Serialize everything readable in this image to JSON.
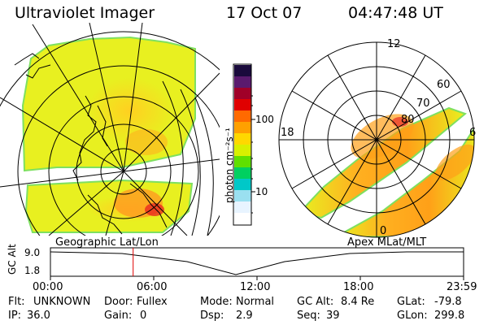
{
  "header": {
    "instrument": "Ultraviolet Imager",
    "date": "17 Oct 07",
    "time": "04:47:48 UT"
  },
  "colorbar": {
    "label": "photon cm⁻²s⁻¹",
    "ticks": [
      "100",
      "10"
    ],
    "scale": "log",
    "colors": [
      "#1a0a3c",
      "#5a1a6e",
      "#a00028",
      "#e00000",
      "#ff6a00",
      "#ffa000",
      "#ffd800",
      "#d8f000",
      "#60e000",
      "#00d060",
      "#00c8c8",
      "#9ae0f0",
      "#e8f4ff",
      "#ffffff"
    ]
  },
  "left_map": {
    "caption": "Geographic Lat/Lon",
    "fill_color": "#e8f020",
    "edge_color": "#7ee060"
  },
  "right_map": {
    "caption": "Apex MLat/MLT",
    "mlt_labels": [
      "12",
      "18",
      "6",
      "0"
    ],
    "lat_labels": [
      "60",
      "70",
      "80"
    ],
    "fill_color": "#e8f020"
  },
  "timeline": {
    "ylabel": "GC Alt",
    "yticks": [
      "9.0",
      "1.8"
    ],
    "xticks": [
      "00:00",
      "06:00",
      "12:00",
      "18:00",
      "23:59"
    ],
    "marker_hours": 4.8,
    "marker_color": "#e00000"
  },
  "status": {
    "row1": [
      {
        "label": "Flt:",
        "value": "UNKNOWN"
      },
      {
        "label": "Door:",
        "value": "Fullex"
      },
      {
        "label": "Mode:",
        "value": "Normal"
      },
      {
        "label": "GC Alt:",
        "value": "8.4 Re"
      },
      {
        "label": "GLat:",
        "value": "-79.8"
      }
    ],
    "row2": [
      {
        "label": "IP:",
        "value": "36.0"
      },
      {
        "label": "Gain:",
        "value": "0"
      },
      {
        "label": "Dsp:",
        "value": "2.9"
      },
      {
        "label": "Seq:",
        "value": "39"
      },
      {
        "label": "GLon:",
        "value": "299.8"
      }
    ]
  }
}
